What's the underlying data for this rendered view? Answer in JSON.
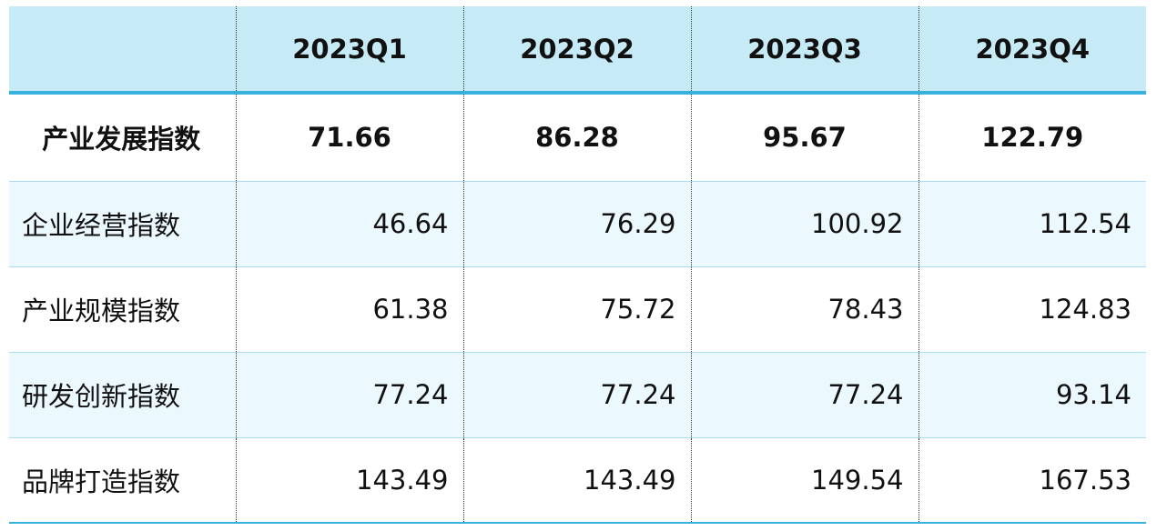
{
  "table": {
    "header": [
      "2023Q1",
      "2023Q2",
      "2023Q3",
      "2023Q4"
    ],
    "rows": [
      {
        "label": "产业发展指数",
        "values": [
          "71.66",
          "86.28",
          "95.67",
          "122.79"
        ]
      },
      {
        "label": "企业经营指数",
        "values": [
          "46.64",
          "76.29",
          "100.92",
          "112.54"
        ]
      },
      {
        "label": "产业规模指数",
        "values": [
          "61.38",
          "75.72",
          "78.43",
          "124.83"
        ]
      },
      {
        "label": "研发创新指数",
        "values": [
          "77.24",
          "77.24",
          "77.24",
          "93.14"
        ]
      },
      {
        "label": "品牌打造指数",
        "values": [
          "143.49",
          "143.49",
          "149.54",
          "167.53"
        ]
      }
    ]
  }
}
